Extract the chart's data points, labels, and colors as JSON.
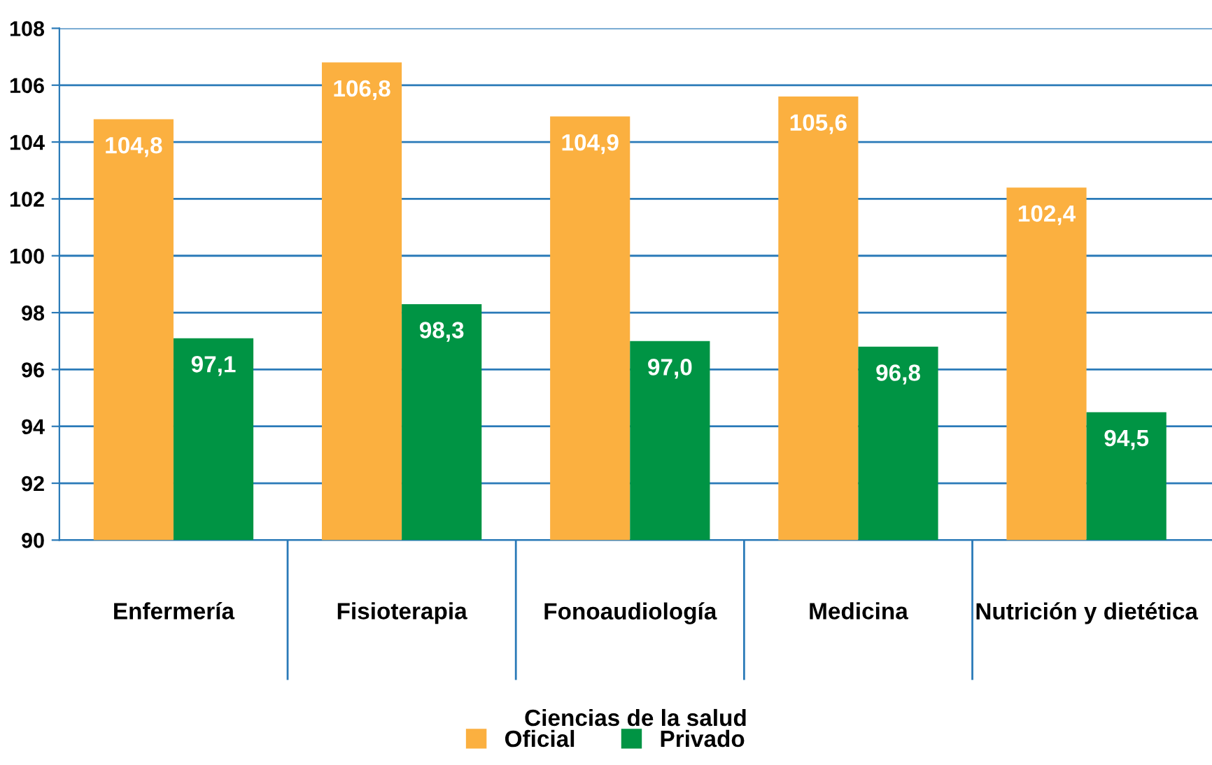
{
  "chart_data": {
    "type": "bar",
    "xlabel": "Ciencias de la salud",
    "categories": [
      "Enfermería",
      "Fisioterapia",
      "Fonoaudiología",
      "Medicina",
      "Nutrición y dietética"
    ],
    "series": [
      {
        "name": "Oficial",
        "color": "#fbb040",
        "values": [
          104.8,
          106.8,
          104.9,
          105.6,
          102.4
        ],
        "value_labels": [
          "104,8",
          "106,8",
          "104,9",
          "105,6",
          "102,4"
        ]
      },
      {
        "name": "Privado",
        "color": "#009444",
        "values": [
          97.1,
          98.3,
          97.0,
          96.8,
          94.5
        ],
        "value_labels": [
          "97,1",
          "98,3",
          "97,0",
          "96,8",
          "94,5"
        ]
      }
    ],
    "ylim": [
      90,
      108
    ],
    "yticks": [
      90,
      92,
      94,
      96,
      98,
      100,
      102,
      104,
      106,
      108
    ],
    "grid": "y",
    "legend": "bottom"
  }
}
